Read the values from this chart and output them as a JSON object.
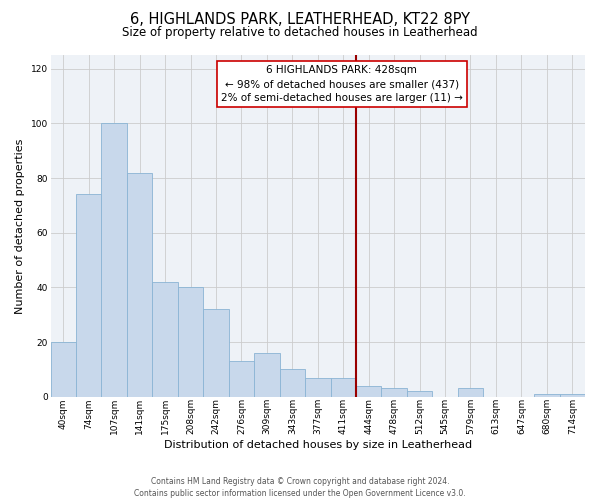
{
  "title": "6, HIGHLANDS PARK, LEATHERHEAD, KT22 8PY",
  "subtitle": "Size of property relative to detached houses in Leatherhead",
  "xlabel": "Distribution of detached houses by size in Leatherhead",
  "ylabel": "Number of detached properties",
  "bar_labels": [
    "40sqm",
    "74sqm",
    "107sqm",
    "141sqm",
    "175sqm",
    "208sqm",
    "242sqm",
    "276sqm",
    "309sqm",
    "343sqm",
    "377sqm",
    "411sqm",
    "444sqm",
    "478sqm",
    "512sqm",
    "545sqm",
    "579sqm",
    "613sqm",
    "647sqm",
    "680sqm",
    "714sqm"
  ],
  "bar_values": [
    20,
    74,
    100,
    82,
    42,
    40,
    32,
    13,
    16,
    10,
    7,
    7,
    4,
    3,
    2,
    0,
    3,
    0,
    0,
    1,
    1
  ],
  "bar_color": "#c8d8eb",
  "bar_edge_color": "#8ab4d4",
  "ylim": [
    0,
    125
  ],
  "yticks": [
    0,
    20,
    40,
    60,
    80,
    100,
    120
  ],
  "property_line_color": "#990000",
  "annotation_title": "6 HIGHLANDS PARK: 428sqm",
  "annotation_line1": "← 98% of detached houses are smaller (437)",
  "annotation_line2": "2% of semi-detached houses are larger (11) →",
  "footer_line1": "Contains HM Land Registry data © Crown copyright and database right 2024.",
  "footer_line2": "Contains public sector information licensed under the Open Government Licence v3.0.",
  "plot_bg_color": "#eef2f7",
  "grid_color": "#cccccc",
  "title_fontsize": 10.5,
  "subtitle_fontsize": 8.5,
  "ylabel_fontsize": 8,
  "xlabel_fontsize": 8,
  "tick_fontsize": 6.5,
  "footer_fontsize": 5.5,
  "annot_fontsize": 7.5
}
